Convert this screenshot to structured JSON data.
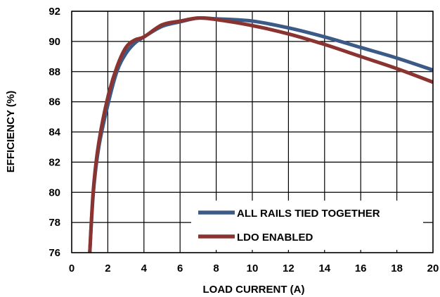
{
  "chart_data": {
    "type": "line",
    "xlabel": "LOAD CURRENT (A)",
    "ylabel": "EFFICIENCY (%)",
    "xlim": [
      0,
      20
    ],
    "ylim": [
      76,
      92
    ],
    "xticks": [
      0,
      2,
      4,
      6,
      8,
      10,
      12,
      14,
      16,
      18,
      20
    ],
    "yticks": [
      76,
      78,
      80,
      82,
      84,
      86,
      88,
      90,
      92
    ],
    "xtick_labels": [
      "0",
      "2",
      "4",
      "6",
      "8",
      "10",
      "12",
      "14",
      "16",
      "18",
      "20"
    ],
    "ytick_labels": [
      "76",
      "78",
      "80",
      "82",
      "84",
      "86",
      "88",
      "90",
      "92"
    ],
    "grid": true,
    "legend_position": "bottom-right",
    "series": [
      {
        "name": "ALL RAILS TIED TOGETHER",
        "color": "#3b5a87",
        "x": [
          1.0,
          1.2,
          1.5,
          2.0,
          2.5,
          3.0,
          3.5,
          4.0,
          5.0,
          6.0,
          7.0,
          8.0,
          10.0,
          12.0,
          14.0,
          16.0,
          18.0,
          20.0
        ],
        "y": [
          76.0,
          80.0,
          83.0,
          85.8,
          88.0,
          89.2,
          89.9,
          90.3,
          91.0,
          91.3,
          91.55,
          91.5,
          91.35,
          90.9,
          90.3,
          89.6,
          88.9,
          88.1
        ]
      },
      {
        "name": "LDO ENABLED",
        "color": "#8a3431",
        "x": [
          1.0,
          1.2,
          1.5,
          2.0,
          2.5,
          3.0,
          3.5,
          4.0,
          5.0,
          6.0,
          7.0,
          8.0,
          10.0,
          12.0,
          14.0,
          16.0,
          18.0,
          20.0
        ],
        "y": [
          76.0,
          80.2,
          83.3,
          86.3,
          88.3,
          89.6,
          90.1,
          90.3,
          91.1,
          91.35,
          91.55,
          91.45,
          91.05,
          90.5,
          89.8,
          89.0,
          88.2,
          87.3
        ]
      }
    ]
  }
}
